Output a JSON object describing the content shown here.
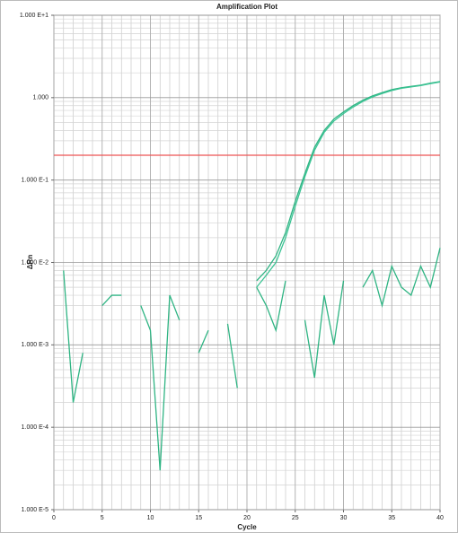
{
  "chart_data": {
    "type": "line",
    "title": "Amplification Plot",
    "x_label": "Cycle",
    "y_label": "ΔRn",
    "log_scale_y": true,
    "grid": true,
    "xlim": [
      0,
      40
    ],
    "xticks": [
      0,
      5,
      10,
      15,
      20,
      25,
      30,
      35,
      40
    ],
    "ylim": [
      1e-05,
      10
    ],
    "yticks": [
      {
        "value": 1e-05,
        "label": "1.000 E-5"
      },
      {
        "value": 0.0001,
        "label": "1.000 E-4"
      },
      {
        "value": 0.001,
        "label": "1.000 E-3"
      },
      {
        "value": 0.01,
        "label": "1.000 E-2"
      },
      {
        "value": 0.1,
        "label": "1.000 E-1"
      },
      {
        "value": 1,
        "label": "1.000"
      },
      {
        "value": 10,
        "label": "1.000 E+1"
      }
    ],
    "threshold": 0.2,
    "threshold_color": "#ee5555",
    "x": [
      1,
      2,
      3,
      4,
      5,
      6,
      7,
      8,
      9,
      10,
      11,
      12,
      13,
      14,
      15,
      16,
      17,
      18,
      19,
      20,
      21,
      22,
      23,
      24,
      25,
      26,
      27,
      28,
      29,
      30,
      31,
      32,
      33,
      34,
      35,
      36,
      37,
      38,
      39,
      40
    ],
    "series": [
      {
        "color": "#2fb483",
        "values": [
          null,
          null,
          null,
          null,
          null,
          null,
          null,
          null,
          null,
          null,
          null,
          null,
          null,
          null,
          null,
          null,
          null,
          null,
          null,
          null,
          0.006,
          0.008,
          0.012,
          0.023,
          0.055,
          0.12,
          0.25,
          0.4,
          0.55,
          0.67,
          0.8,
          0.93,
          1.05,
          1.15,
          1.25,
          1.32,
          1.37,
          1.42,
          1.5,
          1.57
        ]
      },
      {
        "color": "#3cc495",
        "values": [
          null,
          null,
          null,
          null,
          null,
          null,
          null,
          null,
          null,
          null,
          null,
          null,
          null,
          null,
          null,
          null,
          null,
          null,
          null,
          null,
          0.005,
          0.007,
          0.01,
          0.02,
          0.048,
          0.11,
          0.23,
          0.38,
          0.52,
          0.64,
          0.77,
          0.9,
          1.02,
          1.12,
          1.22,
          1.3,
          1.35,
          1.4,
          1.48,
          1.55
        ]
      },
      {
        "color": "#2fb483",
        "values": [
          0.008,
          0.0002,
          0.0008,
          null,
          0.003,
          0.004,
          0.004,
          null,
          0.003,
          0.0015,
          3e-05,
          0.004,
          0.002,
          null,
          0.0008,
          0.0015,
          null,
          0.0018,
          0.0003,
          null,
          0.005,
          0.003,
          0.0015,
          0.006,
          null,
          0.002,
          0.0004,
          0.004,
          0.001,
          0.006,
          null,
          0.005,
          0.008,
          0.003,
          0.009,
          0.005,
          0.004,
          0.009,
          0.005,
          0.015
        ]
      }
    ]
  }
}
